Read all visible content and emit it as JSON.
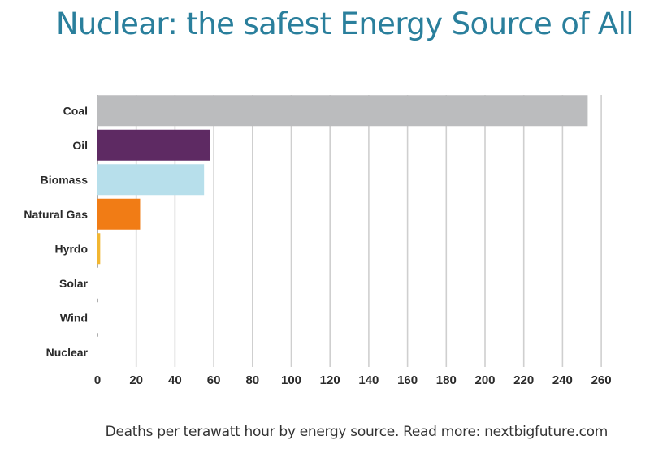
{
  "title": "Nuclear: the safest Energy Source of All",
  "caption": "Deaths per terawatt hour by energy source. Read more: nextbigfuture.com",
  "chart_data": {
    "type": "bar",
    "orientation": "horizontal",
    "title": "Nuclear: the safest Energy Source of All",
    "xlabel": "",
    "ylabel": "",
    "categories": [
      "Coal",
      "Oil",
      "Biomass",
      "Natural Gas",
      "Hyrdo",
      "Solar",
      "Wind",
      "Nuclear"
    ],
    "values": [
      253,
      58,
      55,
      22,
      1.4,
      0.4,
      0.15,
      0.04
    ],
    "colors": [
      "#bbbcbe",
      "#5e2a63",
      "#b7dfeb",
      "#f17c15",
      "#f2b631",
      "#ffffff",
      "#ffffff",
      "#ffffff"
    ],
    "ticks": [
      0,
      20,
      40,
      60,
      80,
      100,
      120,
      140,
      160,
      180,
      200,
      220,
      240,
      260
    ],
    "xlim": [
      0,
      260
    ],
    "grid": true,
    "legend": "none"
  }
}
